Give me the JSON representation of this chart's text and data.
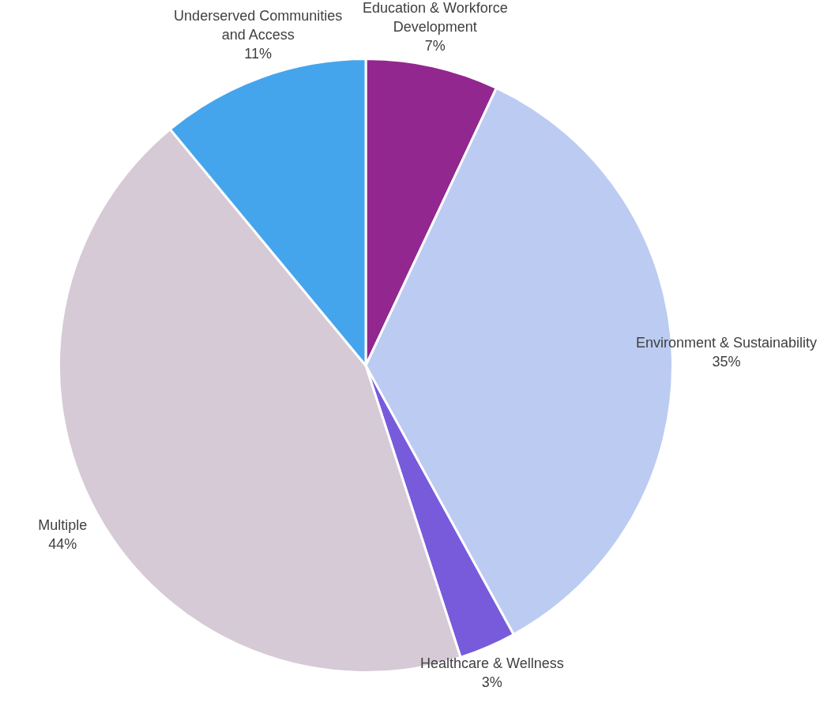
{
  "chart_data": {
    "type": "pie",
    "categories": [
      "Education & Workforce Development",
      "Environment & Sustainability",
      "Healthcare & Wellness",
      "Multiple",
      "Underserved Communities and Access"
    ],
    "values": [
      7,
      35,
      3,
      44,
      11
    ],
    "colors": [
      "#92278f",
      "#bccbf1",
      "#775bdb",
      "#d6cad6",
      "#45a5ec"
    ],
    "value_labels": [
      "7%",
      "35%",
      "3%",
      "44%",
      "11%"
    ],
    "legend": false
  }
}
